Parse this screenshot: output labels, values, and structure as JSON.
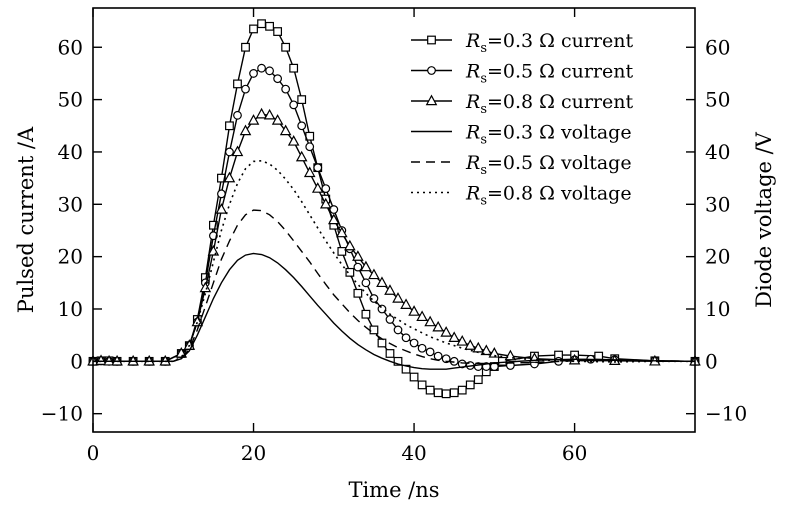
{
  "chart_data": {
    "type": "line",
    "xlabel": "Time /ns",
    "ylabel_left": "Pulsed current /A",
    "ylabel_right": "Diode voltage /V",
    "xlim": [
      0,
      75
    ],
    "ylim": [
      -13.5,
      67.5
    ],
    "x_ticks": [
      0,
      20,
      40,
      60
    ],
    "y_ticks": [
      -10,
      0,
      10,
      20,
      30,
      40,
      50,
      60
    ],
    "y_ticks_right": [
      -10,
      0,
      10,
      20,
      30,
      40,
      50,
      60
    ],
    "legend_position": "top-right",
    "series": [
      {
        "name_prefix": "R",
        "name_sub": "s",
        "name_suffix": "=0.3 Ω current",
        "marker": "square",
        "dash": "solid",
        "axis": "left",
        "points": [
          [
            0,
            0
          ],
          [
            1,
            0.1
          ],
          [
            2,
            0.1
          ],
          [
            3,
            0
          ],
          [
            5,
            0
          ],
          [
            7,
            0
          ],
          [
            9,
            0
          ],
          [
            11,
            1.5
          ],
          [
            12,
            3
          ],
          [
            13,
            8
          ],
          [
            14,
            16
          ],
          [
            15,
            26
          ],
          [
            16,
            35
          ],
          [
            17,
            45
          ],
          [
            18,
            53
          ],
          [
            19,
            60
          ],
          [
            20,
            63.5
          ],
          [
            21,
            64.5
          ],
          [
            22,
            64
          ],
          [
            23,
            63
          ],
          [
            24,
            60
          ],
          [
            25,
            56
          ],
          [
            26,
            50
          ],
          [
            27,
            43
          ],
          [
            28,
            37
          ],
          [
            29,
            31
          ],
          [
            30,
            26
          ],
          [
            31,
            21
          ],
          [
            32,
            17
          ],
          [
            33,
            13
          ],
          [
            34,
            9
          ],
          [
            35,
            6
          ],
          [
            36,
            3.5
          ],
          [
            37,
            1.5
          ],
          [
            38,
            0
          ],
          [
            39,
            -1.5
          ],
          [
            40,
            -3
          ],
          [
            41,
            -4.5
          ],
          [
            42,
            -5.5
          ],
          [
            43,
            -6
          ],
          [
            44,
            -6.2
          ],
          [
            45,
            -6
          ],
          [
            46,
            -5.5
          ],
          [
            47,
            -4.5
          ],
          [
            48,
            -3.5
          ],
          [
            49,
            -2
          ],
          [
            50,
            -1
          ],
          [
            51,
            0
          ],
          [
            55,
            1
          ],
          [
            58,
            1.2
          ],
          [
            60,
            1.2
          ],
          [
            63,
            1
          ],
          [
            65,
            0.5
          ],
          [
            70,
            0.1
          ],
          [
            75,
            0
          ]
        ]
      },
      {
        "name_prefix": "R",
        "name_sub": "s",
        "name_suffix": "=0.5 Ω current",
        "marker": "circle",
        "dash": "solid",
        "axis": "left",
        "points": [
          [
            0,
            0
          ],
          [
            1,
            0.1
          ],
          [
            2,
            0
          ],
          [
            3,
            0
          ],
          [
            5,
            0
          ],
          [
            7,
            0
          ],
          [
            9,
            0
          ],
          [
            11,
            1.5
          ],
          [
            12,
            3
          ],
          [
            13,
            7.5
          ],
          [
            14,
            15
          ],
          [
            15,
            24
          ],
          [
            16,
            32
          ],
          [
            17,
            40
          ],
          [
            18,
            47
          ],
          [
            19,
            52
          ],
          [
            20,
            55
          ],
          [
            21,
            56
          ],
          [
            22,
            55.5
          ],
          [
            23,
            54
          ],
          [
            24,
            52
          ],
          [
            25,
            49
          ],
          [
            26,
            45
          ],
          [
            27,
            41
          ],
          [
            28,
            37
          ],
          [
            29,
            33
          ],
          [
            30,
            29
          ],
          [
            31,
            25
          ],
          [
            32,
            21.5
          ],
          [
            33,
            18
          ],
          [
            34,
            15
          ],
          [
            35,
            12
          ],
          [
            36,
            10
          ],
          [
            37,
            8
          ],
          [
            38,
            6
          ],
          [
            39,
            4.5
          ],
          [
            40,
            3.5
          ],
          [
            41,
            2.5
          ],
          [
            42,
            1.8
          ],
          [
            43,
            1
          ],
          [
            44,
            0.5
          ],
          [
            45,
            0
          ],
          [
            46,
            -0.5
          ],
          [
            47,
            -0.8
          ],
          [
            48,
            -1
          ],
          [
            49,
            -1
          ],
          [
            50,
            -1
          ],
          [
            52,
            -0.8
          ],
          [
            55,
            -0.5
          ],
          [
            58,
            0
          ],
          [
            60,
            0.3
          ],
          [
            62,
            0.4
          ],
          [
            65,
            0.3
          ],
          [
            70,
            0.1
          ],
          [
            75,
            0
          ]
        ]
      },
      {
        "name_prefix": "R",
        "name_sub": "s",
        "name_suffix": "=0.8 Ω current",
        "marker": "triangle",
        "dash": "solid",
        "axis": "left",
        "points": [
          [
            0,
            0
          ],
          [
            1,
            0.1
          ],
          [
            2,
            0
          ],
          [
            3,
            0
          ],
          [
            5,
            0
          ],
          [
            7,
            0
          ],
          [
            9,
            0
          ],
          [
            11,
            1.5
          ],
          [
            12,
            3
          ],
          [
            13,
            7.5
          ],
          [
            14,
            14
          ],
          [
            15,
            21
          ],
          [
            16,
            29
          ],
          [
            17,
            35
          ],
          [
            18,
            40
          ],
          [
            19,
            44
          ],
          [
            20,
            46
          ],
          [
            21,
            47.2
          ],
          [
            22,
            47
          ],
          [
            23,
            46
          ],
          [
            24,
            44
          ],
          [
            25,
            42
          ],
          [
            26,
            39
          ],
          [
            27,
            36
          ],
          [
            28,
            33
          ],
          [
            29,
            30
          ],
          [
            30,
            27
          ],
          [
            31,
            24.5
          ],
          [
            32,
            22
          ],
          [
            33,
            20
          ],
          [
            34,
            18
          ],
          [
            35,
            16.5
          ],
          [
            36,
            15
          ],
          [
            37,
            13.5
          ],
          [
            38,
            12
          ],
          [
            39,
            10.8
          ],
          [
            40,
            9.5
          ],
          [
            41,
            8.5
          ],
          [
            42,
            7.5
          ],
          [
            43,
            6.5
          ],
          [
            44,
            5.5
          ],
          [
            45,
            4.5
          ],
          [
            46,
            3.8
          ],
          [
            47,
            3
          ],
          [
            48,
            2.5
          ],
          [
            49,
            2
          ],
          [
            50,
            1.5
          ],
          [
            52,
            1
          ],
          [
            55,
            0.5
          ],
          [
            60,
            0.2
          ],
          [
            65,
            0.1
          ],
          [
            70,
            0
          ],
          [
            75,
            0
          ]
        ]
      },
      {
        "name_prefix": "R",
        "name_sub": "s",
        "name_suffix": "=0.3 Ω voltage",
        "marker": "none",
        "dash": "solid",
        "axis": "right",
        "points": [
          [
            0,
            0
          ],
          [
            5,
            0
          ],
          [
            10,
            0
          ],
          [
            11,
            0.5
          ],
          [
            12,
            2
          ],
          [
            13,
            5
          ],
          [
            14,
            8.5
          ],
          [
            15,
            12
          ],
          [
            16,
            15
          ],
          [
            17,
            17.5
          ],
          [
            18,
            19.3
          ],
          [
            19,
            20.3
          ],
          [
            20,
            20.6
          ],
          [
            21,
            20.4
          ],
          [
            22,
            19.8
          ],
          [
            23,
            18.8
          ],
          [
            24,
            17.5
          ],
          [
            25,
            16
          ],
          [
            26,
            14.3
          ],
          [
            27,
            12.5
          ],
          [
            28,
            10.7
          ],
          [
            29,
            9
          ],
          [
            30,
            7.3
          ],
          [
            31,
            5.8
          ],
          [
            32,
            4.4
          ],
          [
            33,
            3.2
          ],
          [
            34,
            2.2
          ],
          [
            35,
            1.3
          ],
          [
            36,
            0.6
          ],
          [
            37,
            0
          ],
          [
            38,
            -0.5
          ],
          [
            39,
            -0.9
          ],
          [
            40,
            -1.2
          ],
          [
            41,
            -1.4
          ],
          [
            42,
            -1.5
          ],
          [
            43,
            -1.5
          ],
          [
            44,
            -1.5
          ],
          [
            45,
            -1.3
          ],
          [
            46,
            -1.1
          ],
          [
            48,
            -0.7
          ],
          [
            50,
            -0.3
          ],
          [
            55,
            0.2
          ],
          [
            60,
            0.4
          ],
          [
            65,
            0.3
          ],
          [
            70,
            0.1
          ],
          [
            75,
            0
          ]
        ]
      },
      {
        "name_prefix": "R",
        "name_sub": "s",
        "name_suffix": "=0.5 Ω voltage",
        "marker": "none",
        "dash": "dash",
        "axis": "right",
        "points": [
          [
            0,
            0
          ],
          [
            5,
            0
          ],
          [
            10,
            0
          ],
          [
            11,
            0.6
          ],
          [
            12,
            2.3
          ],
          [
            13,
            6
          ],
          [
            14,
            10.5
          ],
          [
            15,
            15
          ],
          [
            16,
            19.5
          ],
          [
            17,
            23
          ],
          [
            18,
            26
          ],
          [
            19,
            28
          ],
          [
            20,
            28.9
          ],
          [
            21,
            28.8
          ],
          [
            22,
            28
          ],
          [
            23,
            26.7
          ],
          [
            24,
            25
          ],
          [
            25,
            23
          ],
          [
            26,
            21
          ],
          [
            27,
            19
          ],
          [
            28,
            16.8
          ],
          [
            29,
            14.7
          ],
          [
            30,
            12.7
          ],
          [
            31,
            11
          ],
          [
            32,
            9.3
          ],
          [
            33,
            7.8
          ],
          [
            34,
            6.5
          ],
          [
            35,
            5.3
          ],
          [
            36,
            4.3
          ],
          [
            37,
            3.4
          ],
          [
            38,
            2.6
          ],
          [
            39,
            2
          ],
          [
            40,
            1.4
          ],
          [
            41,
            0.9
          ],
          [
            42,
            0.5
          ],
          [
            43,
            0.2
          ],
          [
            44,
            0
          ],
          [
            46,
            -0.3
          ],
          [
            48,
            -0.4
          ],
          [
            50,
            -0.4
          ],
          [
            55,
            -0.2
          ],
          [
            60,
            0.1
          ],
          [
            65,
            0.2
          ],
          [
            70,
            0.1
          ],
          [
            75,
            0
          ]
        ]
      },
      {
        "name_prefix": "R",
        "name_sub": "s",
        "name_suffix": "=0.8 Ω voltage",
        "marker": "none",
        "dash": "dot",
        "axis": "right",
        "points": [
          [
            0,
            0
          ],
          [
            5,
            0
          ],
          [
            10,
            0
          ],
          [
            11,
            0.8
          ],
          [
            12,
            3
          ],
          [
            13,
            7.5
          ],
          [
            14,
            13
          ],
          [
            15,
            19
          ],
          [
            16,
            25
          ],
          [
            17,
            30
          ],
          [
            18,
            34
          ],
          [
            19,
            36.8
          ],
          [
            20,
            38.2
          ],
          [
            21,
            38.3
          ],
          [
            22,
            37.7
          ],
          [
            23,
            36.5
          ],
          [
            24,
            34.8
          ],
          [
            25,
            32.8
          ],
          [
            26,
            30.5
          ],
          [
            27,
            28
          ],
          [
            28,
            25.5
          ],
          [
            29,
            23
          ],
          [
            30,
            20.7
          ],
          [
            31,
            18.5
          ],
          [
            32,
            16.5
          ],
          [
            33,
            14.7
          ],
          [
            34,
            13
          ],
          [
            35,
            11.5
          ],
          [
            36,
            10.2
          ],
          [
            37,
            9
          ],
          [
            38,
            8
          ],
          [
            39,
            7
          ],
          [
            40,
            6.2
          ],
          [
            42,
            4.7
          ],
          [
            44,
            3.5
          ],
          [
            46,
            2.5
          ],
          [
            48,
            1.7
          ],
          [
            50,
            1.1
          ],
          [
            52,
            0.7
          ],
          [
            55,
            0.3
          ],
          [
            60,
            0
          ],
          [
            65,
            -0.1
          ],
          [
            70,
            0
          ],
          [
            75,
            0
          ]
        ]
      }
    ]
  }
}
